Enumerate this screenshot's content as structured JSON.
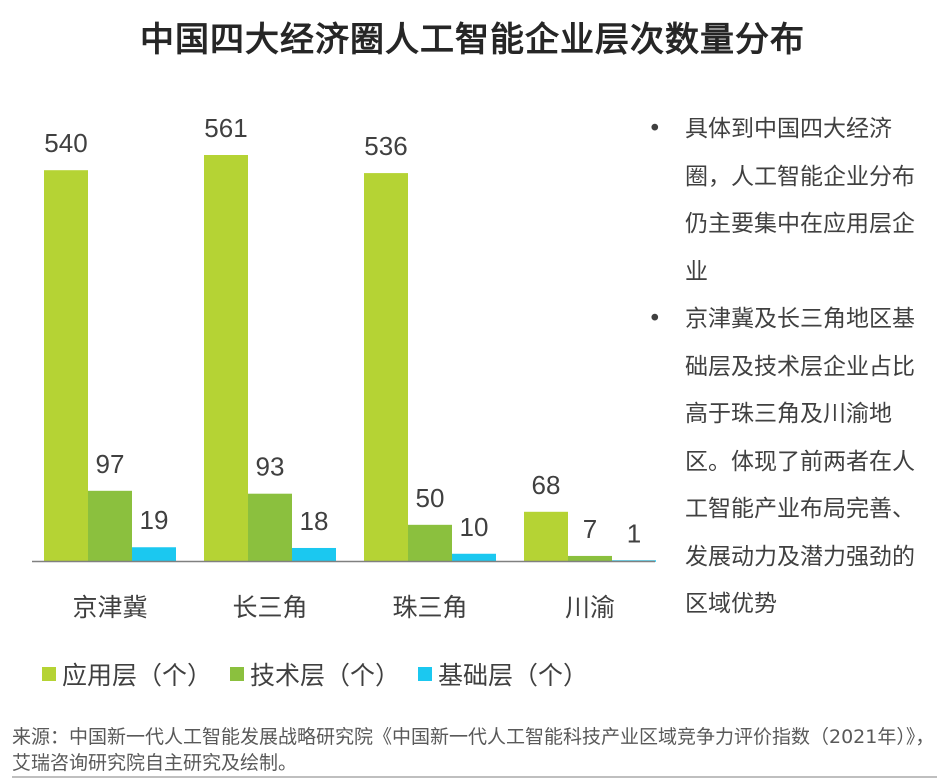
{
  "title": "中国四大经济圈人工智能企业层次数量分布",
  "chart_data": {
    "type": "bar",
    "title": "中国四大经济圈人工智能企业层次数量分布",
    "categories": [
      "京津冀",
      "长三角",
      "珠三角",
      "川渝"
    ],
    "series": [
      {
        "name": "应用层（个）",
        "color": "#B5D334",
        "values": [
          540,
          561,
          536,
          68
        ]
      },
      {
        "name": "技术层（个）",
        "color": "#8BC03E",
        "values": [
          97,
          93,
          50,
          7
        ]
      },
      {
        "name": "基础层（个）",
        "color": "#1BC8F0",
        "values": [
          19,
          18,
          10,
          1
        ]
      }
    ],
    "ylim": [
      0,
      600
    ],
    "grid": false,
    "legend": "bottom",
    "data_labels": true
  },
  "bullets": [
    "具体到中国四大经济圈，人工智能企业分布仍主要集中在应用层企业",
    "京津冀及长三角地区基础层及技术层企业占比高于珠三角及川渝地区。体现了前两者在人工智能产业布局完善、发展动力及潜力强劲的区域优势"
  ],
  "bullet_symbol": "•",
  "source": "来源：中国新一代人工智能发展战略研究院《中国新一代人工智能科技产业区域竞争力评价指数（2021年）》，艾瑞咨询研究院自主研究及绘制。"
}
